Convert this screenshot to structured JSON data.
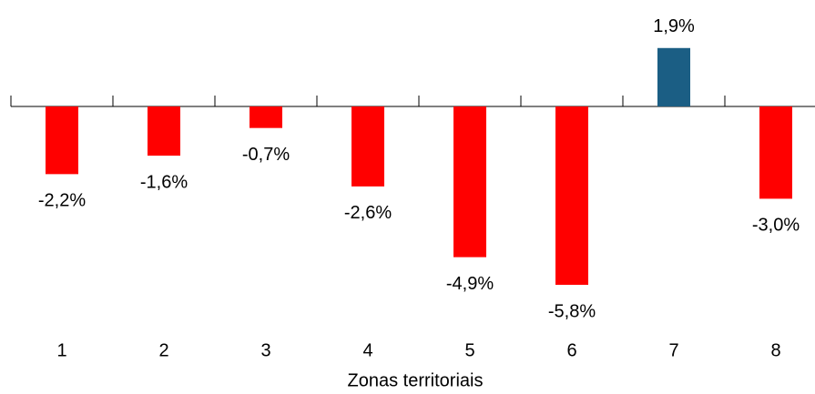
{
  "chart_data": {
    "type": "bar",
    "x_label": "Zonas territoriais",
    "categories": [
      "1",
      "2",
      "3",
      "4",
      "5",
      "6",
      "7",
      "8"
    ],
    "values": [
      -2.2,
      -1.6,
      -0.7,
      -2.6,
      -4.9,
      -5.8,
      1.9,
      -3.0
    ],
    "value_labels": [
      "-2,2%",
      "-1,6%",
      "-0,7%",
      "-2,6%",
      "-4,9%",
      "-5,8%",
      "1,9%",
      "-3,0%"
    ],
    "colors": [
      "#ff0000",
      "#ff0000",
      "#ff0000",
      "#ff0000",
      "#ff0000",
      "#ff0000",
      "#1b5e84",
      "#ff0000"
    ]
  }
}
